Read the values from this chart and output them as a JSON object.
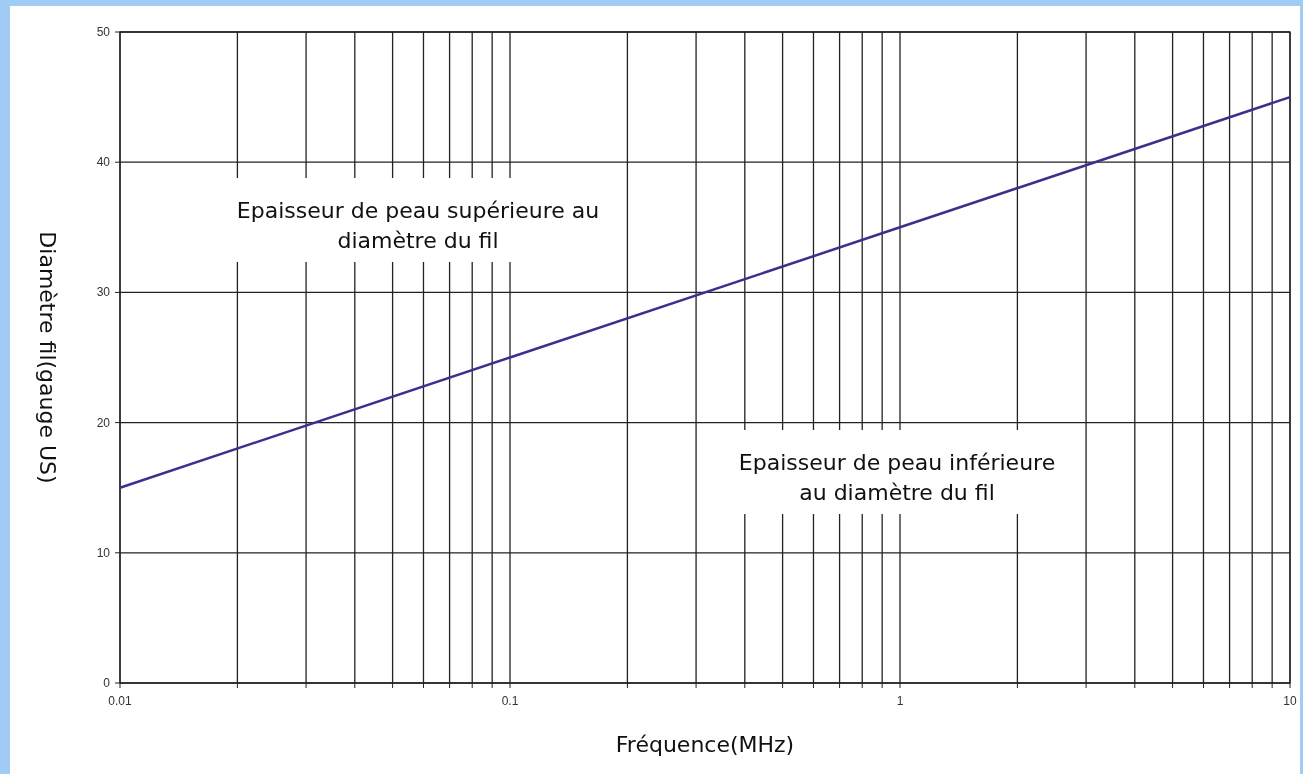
{
  "chart_data": {
    "type": "line",
    "xlabel": "Fréquence(MHz)",
    "ylabel": "Diamètre fil(gauge US)",
    "log": "x",
    "grid": true,
    "marker": "none",
    "line_style": "solid",
    "xlim": [
      0.01,
      10
    ],
    "ylim": [
      0,
      50
    ],
    "xticks": [
      0.01,
      {
        "value": 0.02,
        "label": null
      },
      {
        "value": 0.03,
        "label": null
      },
      {
        "value": 0.04,
        "label": null
      },
      {
        "value": 0.05,
        "label": null
      },
      {
        "value": 0.06,
        "label": null
      },
      {
        "value": 0.07,
        "label": null
      },
      {
        "value": 0.08,
        "label": null
      },
      {
        "value": 0.09,
        "label": null
      },
      0.1,
      {
        "value": 0.2,
        "label": null
      },
      {
        "value": 0.3,
        "label": null
      },
      {
        "value": 0.4,
        "label": null
      },
      {
        "value": 0.5,
        "label": null
      },
      {
        "value": 0.6,
        "label": null
      },
      {
        "value": 0.7,
        "label": null
      },
      {
        "value": 0.8,
        "label": null
      },
      {
        "value": 0.9,
        "label": null
      },
      1,
      {
        "value": 2,
        "label": null
      },
      {
        "value": 3,
        "label": null
      },
      {
        "value": 4,
        "label": null
      },
      {
        "value": 5,
        "label": null
      },
      {
        "value": 6,
        "label": null
      },
      {
        "value": 7,
        "label": null
      },
      {
        "value": 8,
        "label": null
      },
      {
        "value": 9,
        "label": null
      },
      10
    ],
    "yticks": [
      0,
      10,
      20,
      30,
      40,
      50
    ],
    "x": [
      0.01,
      0.1,
      1,
      10
    ],
    "series": [
      {
        "color": "#3b2f8f",
        "values": [
          15,
          25,
          35,
          45
        ]
      }
    ],
    "annotations": [
      "Epaisseur de peau supérieure au\ndiamètre du fil",
      "Epaisseur de peau inférieure\nau diamètre du fil"
    ]
  }
}
